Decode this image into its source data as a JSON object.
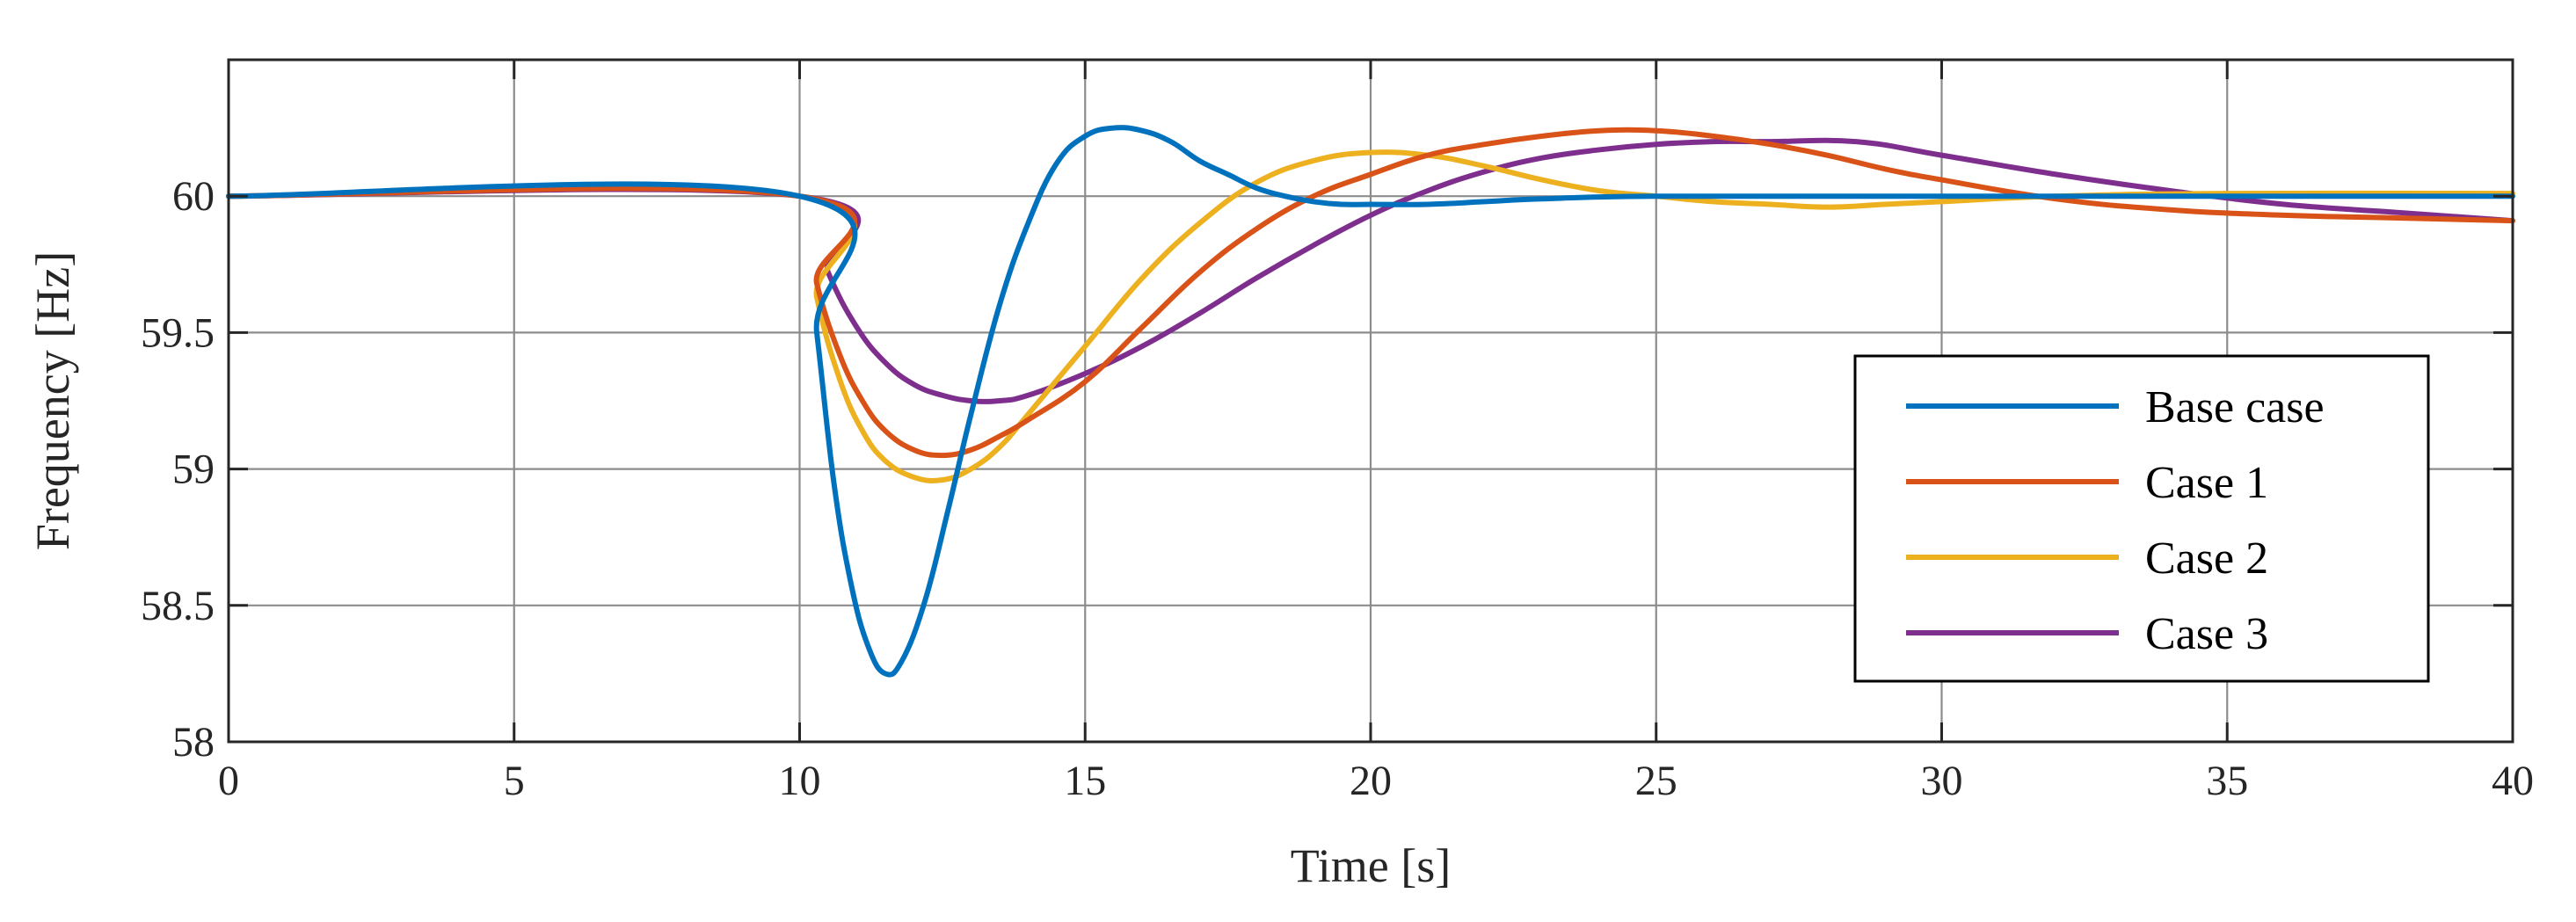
{
  "chart_data": {
    "type": "line",
    "title": "",
    "xlabel": "Time [s]",
    "ylabel": "Frequency [Hz]",
    "xlim": [
      0,
      40
    ],
    "ylim": [
      58,
      60.5
    ],
    "xticks": [
      0,
      5,
      10,
      15,
      20,
      25,
      30,
      35,
      40
    ],
    "yticks": [
      58,
      58.5,
      59,
      59.5,
      60
    ],
    "xtick_labels": [
      "0",
      "5",
      "10",
      "15",
      "20",
      "25",
      "30",
      "35",
      "40"
    ],
    "ytick_labels": [
      "58",
      "58.5",
      "59",
      "59.5",
      "60"
    ],
    "grid": true,
    "legend_position": "lower-right",
    "series": [
      {
        "name": "Base case",
        "color": "#0072BD",
        "x": [
          0,
          10,
          10.3,
          10.6,
          10.9,
          11.2,
          11.5,
          11.8,
          12.2,
          12.6,
          13.0,
          13.5,
          14.0,
          14.5,
          15.0,
          15.5,
          16.0,
          16.5,
          17.0,
          17.5,
          18.0,
          18.5,
          19.0,
          19.5,
          20.0,
          21.0,
          22.0,
          23.0,
          25.0,
          30.0,
          35.0,
          40.0
        ],
        "y": [
          60,
          60,
          59.5,
          58.95,
          58.58,
          58.35,
          58.25,
          58.3,
          58.52,
          58.85,
          59.2,
          59.6,
          59.9,
          60.12,
          60.22,
          60.25,
          60.24,
          60.2,
          60.13,
          60.08,
          60.03,
          60.0,
          59.98,
          59.97,
          59.97,
          59.97,
          59.98,
          59.99,
          60.0,
          60.0,
          60.0,
          60.0
        ]
      },
      {
        "name": "Case 1",
        "color": "#D95319",
        "x": [
          0,
          10,
          10.3,
          10.7,
          11.1,
          11.5,
          12.0,
          12.5,
          13.0,
          13.5,
          14.0,
          15.0,
          16.0,
          17.0,
          18.0,
          19.0,
          20.0,
          21.0,
          22.0,
          23.0,
          24.0,
          25.0,
          26.0,
          27.0,
          28.0,
          29.0,
          30.0,
          32.0,
          34.0,
          36.0,
          38.0,
          40.0
        ],
        "y": [
          60,
          60,
          59.68,
          59.42,
          59.25,
          59.14,
          59.07,
          59.05,
          59.07,
          59.12,
          59.18,
          59.32,
          59.52,
          59.72,
          59.88,
          60.0,
          60.08,
          60.15,
          60.19,
          60.22,
          60.24,
          60.24,
          60.22,
          60.19,
          60.15,
          60.1,
          60.06,
          59.99,
          59.95,
          59.93,
          59.92,
          59.91
        ]
      },
      {
        "name": "Case 2",
        "color": "#EDB120",
        "x": [
          0,
          10,
          10.3,
          10.7,
          11.1,
          11.5,
          12.0,
          12.5,
          13.0,
          13.5,
          14.0,
          15.0,
          16.0,
          17.0,
          18.0,
          19.0,
          20.0,
          21.0,
          22.0,
          23.0,
          24.0,
          25.0,
          26.0,
          27.0,
          28.0,
          29.0,
          30.0,
          32.0,
          35.0,
          40.0
        ],
        "y": [
          60,
          60,
          59.63,
          59.33,
          59.14,
          59.03,
          58.97,
          58.96,
          59.0,
          59.08,
          59.2,
          59.45,
          59.7,
          59.9,
          60.05,
          60.13,
          60.16,
          60.15,
          60.11,
          60.06,
          60.02,
          60.0,
          59.98,
          59.97,
          59.96,
          59.97,
          59.98,
          60.0,
          60.01,
          60.01
        ]
      },
      {
        "name": "Case 3",
        "color": "#7E2F8E",
        "x": [
          0,
          10,
          10.5,
          11.0,
          11.5,
          12.0,
          12.5,
          13.0,
          13.5,
          14.0,
          15.0,
          16.0,
          17.0,
          18.0,
          19.0,
          20.0,
          21.0,
          22.0,
          23.0,
          24.0,
          25.0,
          26.0,
          27.0,
          28.5,
          30.0,
          32.0,
          34.0,
          36.0,
          38.0,
          40.0
        ],
        "y": [
          60,
          60,
          59.72,
          59.52,
          59.39,
          59.31,
          59.27,
          59.25,
          59.25,
          59.27,
          59.35,
          59.45,
          59.57,
          59.7,
          59.82,
          59.93,
          60.02,
          60.09,
          60.14,
          60.17,
          60.19,
          60.2,
          60.2,
          60.2,
          60.15,
          60.08,
          60.02,
          59.97,
          59.94,
          59.91
        ]
      }
    ]
  }
}
